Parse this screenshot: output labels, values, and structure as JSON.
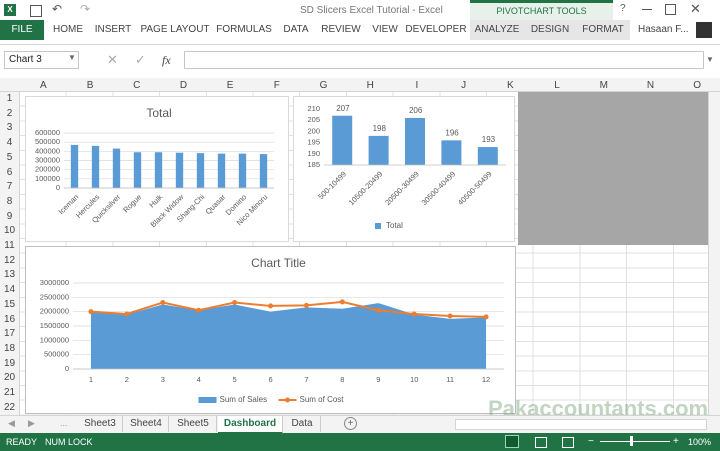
{
  "window": {
    "title": "SD Slicers Excel Tutorial - Excel",
    "tool_group": "PIVOTCHART TOOLS",
    "user": "Hasaan F..."
  },
  "ribbon": {
    "tabs": [
      "FILE",
      "HOME",
      "INSERT",
      "PAGE LAYOUT",
      "FORMULAS",
      "DATA",
      "REVIEW",
      "VIEW",
      "DEVELOPER",
      "ANALYZE",
      "DESIGN",
      "FORMAT"
    ]
  },
  "formula_bar": {
    "name_box": "Chart 3",
    "fx": "fx"
  },
  "sheet": {
    "columns": [
      "A",
      "B",
      "C",
      "D",
      "E",
      "F",
      "G",
      "H",
      "I",
      "J",
      "K",
      "L",
      "M",
      "N",
      "O"
    ],
    "rows": [
      1,
      2,
      3,
      4,
      5,
      6,
      7,
      8,
      9,
      10,
      11,
      12,
      13,
      14,
      15,
      16,
      17,
      18,
      19,
      20,
      21,
      22
    ]
  },
  "sheet_tabs": [
    "Sheet3",
    "Sheet4",
    "Sheet5",
    "Dashboard",
    "Data"
  ],
  "status_bar": {
    "mode": "READY",
    "num_lock": "NUM LOCK",
    "zoom": "100%"
  },
  "watermark": "Pakaccountants.com",
  "chart_data": [
    {
      "type": "bar",
      "title": "Total",
      "categories": [
        "Iceman",
        "Hercules",
        "Quicksilver",
        "Rogue",
        "Hulk",
        "Black Widow",
        "Shang-Chi",
        "Quasar",
        "Domino",
        "Nico Minoru"
      ],
      "series": [
        {
          "name": "Total",
          "color": "#5b9bd5",
          "values": [
            470000,
            460000,
            430000,
            390000,
            390000,
            385000,
            380000,
            375000,
            375000,
            370000
          ]
        }
      ],
      "ylim": [
        0,
        600000
      ],
      "yticks": [
        0,
        100000,
        200000,
        300000,
        400000,
        500000,
        600000
      ],
      "grid": true
    },
    {
      "type": "bar",
      "categories": [
        "500-10499",
        "10500-20499",
        "20500-30499",
        "30500-40499",
        "40500-50499"
      ],
      "series": [
        {
          "name": "Total",
          "color": "#5b9bd5",
          "values": [
            207,
            198,
            206,
            196,
            193
          ]
        }
      ],
      "ylim": [
        185,
        210
      ],
      "yticks": [
        185,
        190,
        195,
        200,
        205,
        210
      ],
      "grid": false,
      "legend": "bottom"
    },
    {
      "type": "combo",
      "title": "Chart Title",
      "categories": [
        "1",
        "2",
        "3",
        "4",
        "5",
        "6",
        "7",
        "8",
        "9",
        "10",
        "11",
        "12"
      ],
      "series": [
        {
          "name": "Sum of Sales",
          "kind": "area",
          "color": "#5b9bd5",
          "values": [
            2000000,
            1900000,
            2250000,
            2050000,
            2250000,
            2000000,
            2150000,
            2100000,
            2300000,
            1900000,
            1750000,
            1800000
          ]
        },
        {
          "name": "Sum of Cost",
          "kind": "line",
          "color": "#ed7d31",
          "values": [
            2000000,
            1920000,
            2320000,
            2050000,
            2320000,
            2200000,
            2220000,
            2340000,
            2050000,
            1920000,
            1850000,
            1820000
          ]
        }
      ],
      "ylim": [
        0,
        3000000
      ],
      "yticks": [
        0,
        500000,
        1000000,
        1500000,
        2000000,
        2500000,
        3000000
      ],
      "grid": true,
      "legend": "bottom"
    }
  ]
}
